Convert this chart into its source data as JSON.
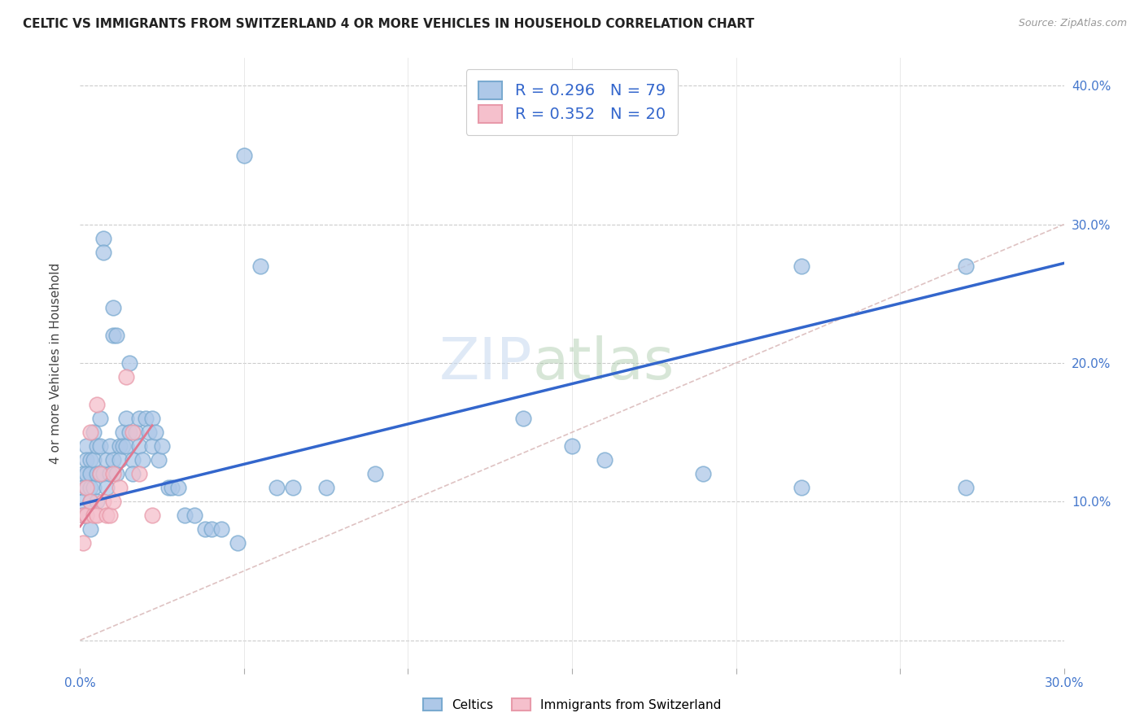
{
  "title": "CELTIC VS IMMIGRANTS FROM SWITZERLAND 4 OR MORE VEHICLES IN HOUSEHOLD CORRELATION CHART",
  "source": "Source: ZipAtlas.com",
  "ylabel_label": "4 or more Vehicles in Household",
  "x_min": 0.0,
  "x_max": 0.3,
  "y_min": -0.02,
  "y_max": 0.42,
  "celtics_color": "#aec8e8",
  "celtics_edge_color": "#7aaad0",
  "swiss_color": "#f5c0cc",
  "swiss_edge_color": "#e89aaa",
  "regression_blue_color": "#3366cc",
  "regression_pink_color": "#e07890",
  "diagonal_color": "#d9b8b8",
  "celtics_R": 0.296,
  "celtics_N": 79,
  "swiss_R": 0.352,
  "swiss_N": 20,
  "celtics_x": [
    0.001,
    0.001,
    0.001,
    0.001,
    0.002,
    0.002,
    0.002,
    0.002,
    0.002,
    0.003,
    0.003,
    0.003,
    0.003,
    0.003,
    0.004,
    0.004,
    0.004,
    0.005,
    0.005,
    0.005,
    0.006,
    0.006,
    0.006,
    0.007,
    0.007,
    0.007,
    0.008,
    0.008,
    0.009,
    0.009,
    0.01,
    0.01,
    0.01,
    0.011,
    0.011,
    0.012,
    0.012,
    0.013,
    0.013,
    0.014,
    0.014,
    0.015,
    0.015,
    0.016,
    0.016,
    0.017,
    0.018,
    0.018,
    0.019,
    0.02,
    0.021,
    0.022,
    0.022,
    0.023,
    0.024,
    0.025,
    0.027,
    0.028,
    0.03,
    0.032,
    0.035,
    0.038,
    0.04,
    0.043,
    0.048,
    0.05,
    0.055,
    0.06,
    0.065,
    0.075,
    0.09,
    0.135,
    0.15,
    0.16,
    0.19,
    0.22,
    0.22,
    0.27,
    0.27
  ],
  "celtics_y": [
    0.12,
    0.11,
    0.1,
    0.09,
    0.14,
    0.13,
    0.12,
    0.11,
    0.09,
    0.13,
    0.12,
    0.11,
    0.1,
    0.08,
    0.15,
    0.13,
    0.11,
    0.14,
    0.12,
    0.1,
    0.16,
    0.14,
    0.12,
    0.29,
    0.28,
    0.12,
    0.13,
    0.11,
    0.14,
    0.12,
    0.24,
    0.22,
    0.13,
    0.22,
    0.12,
    0.14,
    0.13,
    0.15,
    0.14,
    0.16,
    0.14,
    0.2,
    0.15,
    0.13,
    0.12,
    0.15,
    0.16,
    0.14,
    0.13,
    0.16,
    0.15,
    0.16,
    0.14,
    0.15,
    0.13,
    0.14,
    0.11,
    0.11,
    0.11,
    0.09,
    0.09,
    0.08,
    0.08,
    0.08,
    0.07,
    0.35,
    0.27,
    0.11,
    0.11,
    0.11,
    0.12,
    0.16,
    0.14,
    0.13,
    0.12,
    0.11,
    0.27,
    0.27,
    0.11
  ],
  "swiss_x": [
    0.001,
    0.001,
    0.002,
    0.002,
    0.003,
    0.003,
    0.004,
    0.005,
    0.005,
    0.006,
    0.007,
    0.008,
    0.009,
    0.01,
    0.01,
    0.012,
    0.014,
    0.016,
    0.018,
    0.022
  ],
  "swiss_y": [
    0.09,
    0.07,
    0.11,
    0.09,
    0.15,
    0.1,
    0.09,
    0.17,
    0.09,
    0.12,
    0.1,
    0.09,
    0.09,
    0.12,
    0.1,
    0.11,
    0.19,
    0.15,
    0.12,
    0.09
  ],
  "blue_line_x": [
    0.0,
    0.3
  ],
  "blue_line_y": [
    0.098,
    0.272
  ],
  "pink_line_x": [
    0.0,
    0.022
  ],
  "pink_line_y": [
    0.082,
    0.155
  ]
}
